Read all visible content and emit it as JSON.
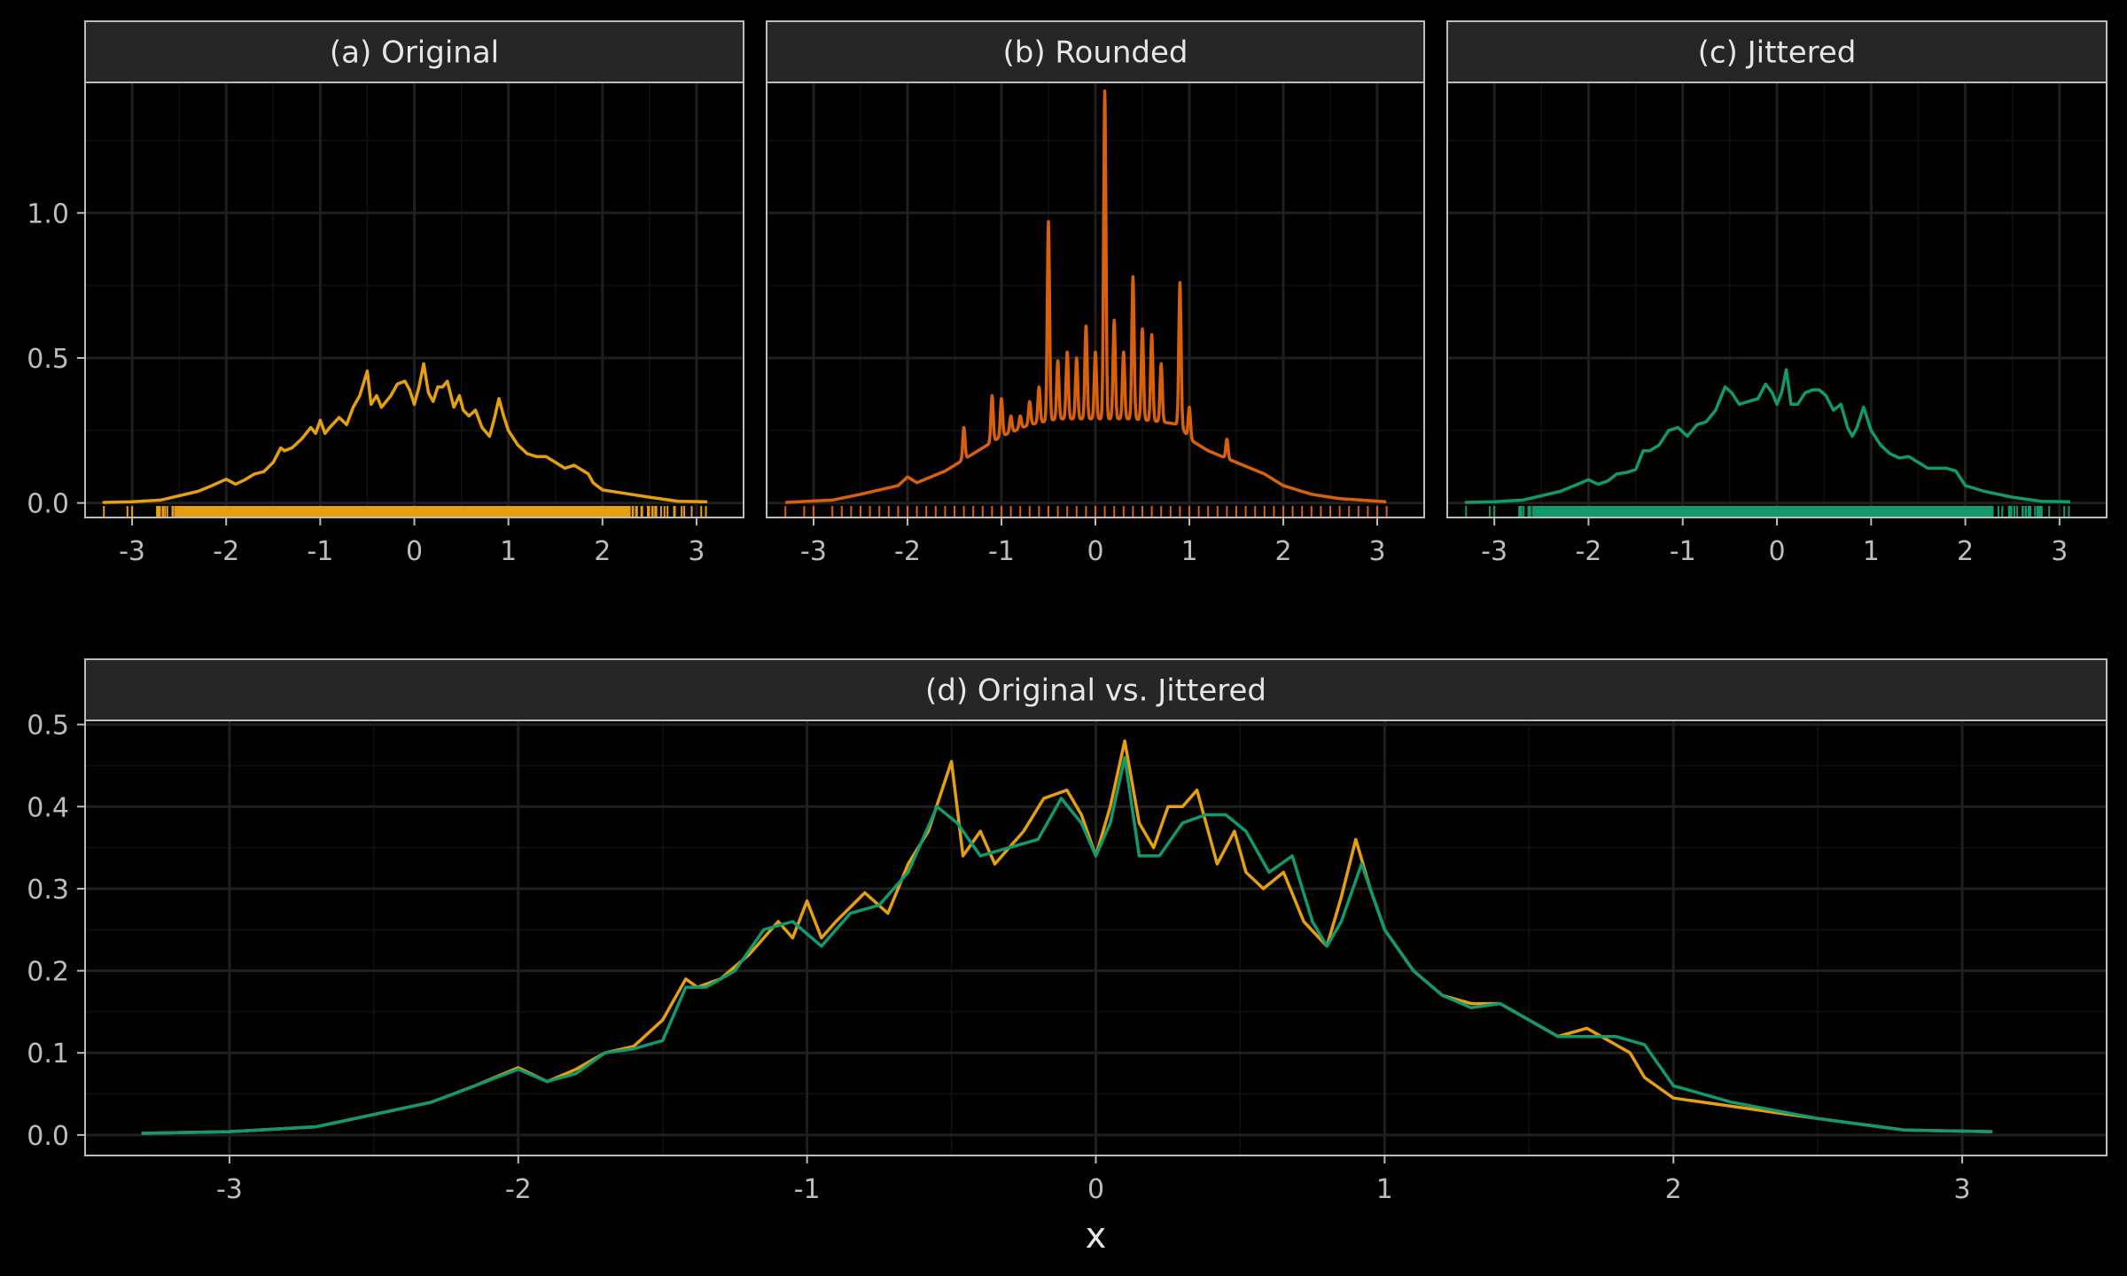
{
  "colors": {
    "background": "#000000",
    "panel_border": "#bdbdbd",
    "strip_fill": "#262626",
    "strip_text": "#e6e6e6",
    "grid_major": "#1f1f1f",
    "grid_minor": "#111111",
    "tick_text": "#bdbdbd",
    "axis_title": "#e6e6e6",
    "original": "#E6A00E",
    "rounded": "#D9610C",
    "jittered": "#119A6E"
  },
  "chart_data": [
    {
      "type": "line",
      "title": "(a) Original",
      "xlim": [
        -3.5,
        3.5
      ],
      "ylim": [
        -0.05,
        1.45
      ],
      "xticks": [
        -3,
        -2,
        -1,
        0,
        1,
        2,
        3
      ],
      "yticks": [
        0.0,
        0.5,
        1.0
      ],
      "ytick_labels": [
        "0.0",
        "0.5",
        "1.0"
      ],
      "grid": true,
      "series": [
        {
          "color_key": "original",
          "x": [
            -3.3,
            -3.0,
            -2.7,
            -2.5,
            -2.3,
            -2.15,
            -2.0,
            -1.9,
            -1.8,
            -1.7,
            -1.6,
            -1.5,
            -1.42,
            -1.38,
            -1.3,
            -1.2,
            -1.1,
            -1.05,
            -1.0,
            -0.95,
            -0.9,
            -0.8,
            -0.72,
            -0.65,
            -0.58,
            -0.5,
            -0.46,
            -0.4,
            -0.35,
            -0.3,
            -0.25,
            -0.18,
            -0.1,
            -0.05,
            0.0,
            0.05,
            0.1,
            0.15,
            0.2,
            0.25,
            0.3,
            0.35,
            0.42,
            0.48,
            0.52,
            0.58,
            0.65,
            0.72,
            0.8,
            0.85,
            0.9,
            0.95,
            1.0,
            1.1,
            1.2,
            1.3,
            1.4,
            1.5,
            1.6,
            1.7,
            1.75,
            1.8,
            1.85,
            1.9,
            2.0,
            2.2,
            2.5,
            2.8,
            3.1
          ],
          "y": [
            0.002,
            0.004,
            0.01,
            0.025,
            0.04,
            0.06,
            0.082,
            0.065,
            0.08,
            0.1,
            0.108,
            0.14,
            0.19,
            0.18,
            0.19,
            0.22,
            0.26,
            0.24,
            0.285,
            0.24,
            0.26,
            0.295,
            0.27,
            0.33,
            0.37,
            0.455,
            0.34,
            0.37,
            0.33,
            0.35,
            0.37,
            0.41,
            0.42,
            0.39,
            0.34,
            0.4,
            0.48,
            0.38,
            0.35,
            0.4,
            0.4,
            0.42,
            0.33,
            0.37,
            0.32,
            0.3,
            0.32,
            0.26,
            0.23,
            0.29,
            0.36,
            0.3,
            0.25,
            0.2,
            0.17,
            0.16,
            0.16,
            0.14,
            0.12,
            0.13,
            0.12,
            0.11,
            0.1,
            0.07,
            0.045,
            0.035,
            0.02,
            0.006,
            0.004
          ]
        }
      ],
      "rug": {
        "color_key": "original",
        "from": -3.3,
        "to": 3.1
      }
    },
    {
      "type": "line",
      "title": "(b) Rounded",
      "xlim": [
        -3.5,
        3.5
      ],
      "ylim": [
        -0.05,
        1.45
      ],
      "xticks": [
        -3,
        -2,
        -1,
        0,
        1,
        2,
        3
      ],
      "yticks": [
        0.0,
        0.5,
        1.0
      ],
      "grid": true,
      "base": [
        [
          -3.3,
          0.002
        ],
        [
          -2.8,
          0.01
        ],
        [
          -2.5,
          0.03
        ],
        [
          -2.1,
          0.06
        ],
        [
          -2.0,
          0.09
        ],
        [
          -1.9,
          0.07
        ],
        [
          -1.6,
          0.11
        ],
        [
          -1.4,
          0.15
        ],
        [
          -1.2,
          0.19
        ],
        [
          -1.0,
          0.23
        ],
        [
          -0.7,
          0.27
        ],
        [
          -0.4,
          0.29
        ],
        [
          0.0,
          0.29
        ],
        [
          0.4,
          0.29
        ],
        [
          0.7,
          0.28
        ],
        [
          0.9,
          0.27
        ],
        [
          1.0,
          0.22
        ],
        [
          1.2,
          0.18
        ],
        [
          1.5,
          0.14
        ],
        [
          1.8,
          0.1
        ],
        [
          2.0,
          0.06
        ],
        [
          2.3,
          0.03
        ],
        [
          2.6,
          0.015
        ],
        [
          3.1,
          0.004
        ]
      ],
      "spikes": [
        [
          -1.4,
          0.26
        ],
        [
          -1.1,
          0.37
        ],
        [
          -1.0,
          0.36
        ],
        [
          -0.9,
          0.3
        ],
        [
          -0.8,
          0.3
        ],
        [
          -0.7,
          0.35
        ],
        [
          -0.6,
          0.4
        ],
        [
          -0.5,
          0.97
        ],
        [
          -0.4,
          0.49
        ],
        [
          -0.3,
          0.52
        ],
        [
          -0.2,
          0.5
        ],
        [
          -0.1,
          0.61
        ],
        [
          0.0,
          0.52
        ],
        [
          0.1,
          1.42
        ],
        [
          0.2,
          0.63
        ],
        [
          0.3,
          0.52
        ],
        [
          0.4,
          0.78
        ],
        [
          0.5,
          0.6
        ],
        [
          0.6,
          0.58
        ],
        [
          0.7,
          0.48
        ],
        [
          0.9,
          0.76
        ],
        [
          1.0,
          0.33
        ],
        [
          1.4,
          0.22
        ]
      ],
      "rug": {
        "color_key": "rounded",
        "from": -3.3,
        "to": 3.1
      }
    },
    {
      "type": "line",
      "title": "(c) Jittered",
      "xlim": [
        -3.5,
        3.5
      ],
      "ylim": [
        -0.05,
        1.45
      ],
      "xticks": [
        -3,
        -2,
        -1,
        0,
        1,
        2,
        3
      ],
      "yticks": [
        0.0,
        0.5,
        1.0
      ],
      "grid": true,
      "series": [
        {
          "color_key": "jittered",
          "x": [
            -3.3,
            -3.0,
            -2.7,
            -2.5,
            -2.3,
            -2.15,
            -2.0,
            -1.9,
            -1.8,
            -1.7,
            -1.6,
            -1.5,
            -1.42,
            -1.35,
            -1.25,
            -1.15,
            -1.05,
            -0.95,
            -0.85,
            -0.75,
            -0.65,
            -0.55,
            -0.48,
            -0.4,
            -0.3,
            -0.2,
            -0.12,
            -0.05,
            0.0,
            0.05,
            0.1,
            0.15,
            0.22,
            0.3,
            0.38,
            0.45,
            0.52,
            0.6,
            0.68,
            0.75,
            0.8,
            0.85,
            0.92,
            1.0,
            1.1,
            1.2,
            1.3,
            1.4,
            1.5,
            1.6,
            1.7,
            1.8,
            1.9,
            2.0,
            2.2,
            2.5,
            2.8,
            3.1
          ],
          "y": [
            0.002,
            0.004,
            0.01,
            0.025,
            0.04,
            0.06,
            0.08,
            0.065,
            0.075,
            0.1,
            0.105,
            0.115,
            0.18,
            0.18,
            0.2,
            0.25,
            0.26,
            0.23,
            0.27,
            0.28,
            0.32,
            0.4,
            0.38,
            0.34,
            0.35,
            0.36,
            0.41,
            0.38,
            0.34,
            0.38,
            0.46,
            0.34,
            0.34,
            0.38,
            0.39,
            0.39,
            0.37,
            0.32,
            0.34,
            0.26,
            0.23,
            0.26,
            0.33,
            0.25,
            0.2,
            0.17,
            0.155,
            0.16,
            0.14,
            0.12,
            0.12,
            0.12,
            0.11,
            0.06,
            0.04,
            0.02,
            0.006,
            0.004
          ]
        }
      ],
      "rug": {
        "color_key": "jittered",
        "from": -3.3,
        "to": 3.1
      }
    },
    {
      "type": "line",
      "title": "(d) Original vs. Jittered",
      "xlabel": "x",
      "xlim": [
        -3.5,
        3.5
      ],
      "ylim": [
        -0.025,
        0.505
      ],
      "xticks": [
        -3,
        -2,
        -1,
        0,
        1,
        2,
        3
      ],
      "yticks": [
        0.0,
        0.1,
        0.2,
        0.3,
        0.4,
        0.5
      ],
      "ytick_labels": [
        "0.0",
        "0.1",
        "0.2",
        "0.3",
        "0.4",
        "0.5"
      ],
      "grid": true,
      "series": [
        {
          "color_key": "original",
          "x": [
            -3.3,
            -3.0,
            -2.7,
            -2.5,
            -2.3,
            -2.15,
            -2.0,
            -1.9,
            -1.8,
            -1.7,
            -1.6,
            -1.5,
            -1.42,
            -1.38,
            -1.3,
            -1.2,
            -1.1,
            -1.05,
            -1.0,
            -0.95,
            -0.9,
            -0.8,
            -0.72,
            -0.65,
            -0.58,
            -0.5,
            -0.46,
            -0.4,
            -0.35,
            -0.3,
            -0.25,
            -0.18,
            -0.1,
            -0.05,
            0.0,
            0.05,
            0.1,
            0.15,
            0.2,
            0.25,
            0.3,
            0.35,
            0.42,
            0.48,
            0.52,
            0.58,
            0.65,
            0.72,
            0.8,
            0.85,
            0.9,
            0.95,
            1.0,
            1.1,
            1.2,
            1.3,
            1.4,
            1.5,
            1.6,
            1.7,
            1.75,
            1.8,
            1.85,
            1.9,
            2.0,
            2.2,
            2.5,
            2.8,
            3.1
          ],
          "y": [
            0.002,
            0.004,
            0.01,
            0.025,
            0.04,
            0.06,
            0.082,
            0.065,
            0.08,
            0.1,
            0.108,
            0.14,
            0.19,
            0.18,
            0.19,
            0.22,
            0.26,
            0.24,
            0.285,
            0.24,
            0.26,
            0.295,
            0.27,
            0.33,
            0.37,
            0.455,
            0.34,
            0.37,
            0.33,
            0.35,
            0.37,
            0.41,
            0.42,
            0.39,
            0.34,
            0.4,
            0.48,
            0.38,
            0.35,
            0.4,
            0.4,
            0.42,
            0.33,
            0.37,
            0.32,
            0.3,
            0.32,
            0.26,
            0.23,
            0.29,
            0.36,
            0.3,
            0.25,
            0.2,
            0.17,
            0.16,
            0.16,
            0.14,
            0.12,
            0.13,
            0.12,
            0.11,
            0.1,
            0.07,
            0.045,
            0.035,
            0.02,
            0.006,
            0.004
          ]
        },
        {
          "color_key": "jittered",
          "x": [
            -3.3,
            -3.0,
            -2.7,
            -2.5,
            -2.3,
            -2.15,
            -2.0,
            -1.9,
            -1.8,
            -1.7,
            -1.6,
            -1.5,
            -1.42,
            -1.35,
            -1.25,
            -1.15,
            -1.05,
            -0.95,
            -0.85,
            -0.75,
            -0.65,
            -0.55,
            -0.48,
            -0.4,
            -0.3,
            -0.2,
            -0.12,
            -0.05,
            0.0,
            0.05,
            0.1,
            0.15,
            0.22,
            0.3,
            0.38,
            0.45,
            0.52,
            0.6,
            0.68,
            0.75,
            0.8,
            0.85,
            0.92,
            1.0,
            1.1,
            1.2,
            1.3,
            1.4,
            1.5,
            1.6,
            1.7,
            1.8,
            1.9,
            2.0,
            2.2,
            2.5,
            2.8,
            3.1
          ],
          "y": [
            0.002,
            0.004,
            0.01,
            0.025,
            0.04,
            0.06,
            0.08,
            0.065,
            0.075,
            0.1,
            0.105,
            0.115,
            0.18,
            0.18,
            0.2,
            0.25,
            0.26,
            0.23,
            0.27,
            0.28,
            0.32,
            0.4,
            0.38,
            0.34,
            0.35,
            0.36,
            0.41,
            0.38,
            0.34,
            0.38,
            0.46,
            0.34,
            0.34,
            0.38,
            0.39,
            0.39,
            0.37,
            0.32,
            0.34,
            0.26,
            0.23,
            0.26,
            0.33,
            0.25,
            0.2,
            0.17,
            0.155,
            0.16,
            0.14,
            0.12,
            0.12,
            0.12,
            0.11,
            0.06,
            0.04,
            0.02,
            0.006,
            0.004
          ]
        }
      ]
    }
  ]
}
